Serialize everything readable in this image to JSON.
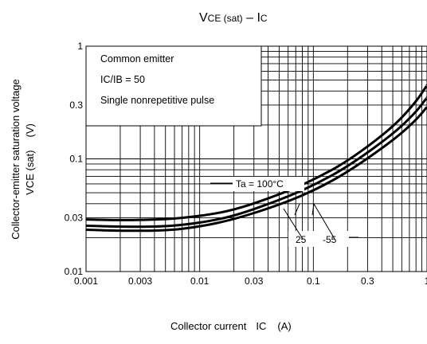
{
  "chart_data": {
    "type": "line",
    "title": "VCE (sat) – IC",
    "title_main": "V",
    "title_sub1": "CE (sat)",
    "title_dash": " – I",
    "title_sub2": "C",
    "xlabel": "Collector current",
    "xlabel_sym": "IC",
    "xlabel_unit": "(A)",
    "ylabel": "Collector-emitter saturation voltage",
    "ylabel_sym": "VCE (sat)",
    "ylabel_unit": "(V)",
    "x_scale": "log",
    "y_scale": "log",
    "xlim": [
      0.001,
      1
    ],
    "ylim": [
      0.01,
      1
    ],
    "x_ticks": [
      0.001,
      0.003,
      0.01,
      0.03,
      0.1,
      0.3,
      1
    ],
    "x_tick_labels": [
      "0.001",
      "0.003",
      "0.01",
      "0.03",
      "0.1",
      "0.3",
      "1"
    ],
    "y_ticks": [
      0.01,
      0.03,
      0.1,
      0.3,
      1
    ],
    "y_tick_labels": [
      "0.01",
      "0.03",
      "0.1",
      "0.3",
      "1"
    ],
    "grid": true,
    "legend_box": [
      "Common emitter",
      "IC/IB = 50",
      "Single nonrepetitive pulse"
    ],
    "series": [
      {
        "name": "Ta = 100°C",
        "x": [
          0.001,
          0.002,
          0.005,
          0.01,
          0.02,
          0.05,
          0.1,
          0.2,
          0.5,
          0.8,
          1.0
        ],
        "y": [
          0.029,
          0.0285,
          0.029,
          0.031,
          0.035,
          0.048,
          0.065,
          0.095,
          0.19,
          0.32,
          0.45
        ]
      },
      {
        "name": "25",
        "x": [
          0.001,
          0.002,
          0.005,
          0.01,
          0.02,
          0.05,
          0.1,
          0.2,
          0.5,
          0.8,
          1.0
        ],
        "y": [
          0.0255,
          0.025,
          0.025,
          0.027,
          0.031,
          0.043,
          0.058,
          0.085,
          0.165,
          0.26,
          0.35
        ]
      },
      {
        "name": "-55",
        "x": [
          0.001,
          0.002,
          0.005,
          0.01,
          0.02,
          0.05,
          0.1,
          0.2,
          0.5,
          0.8,
          1.0
        ],
        "y": [
          0.0235,
          0.023,
          0.023,
          0.025,
          0.029,
          0.039,
          0.052,
          0.076,
          0.145,
          0.22,
          0.29
        ]
      }
    ]
  }
}
